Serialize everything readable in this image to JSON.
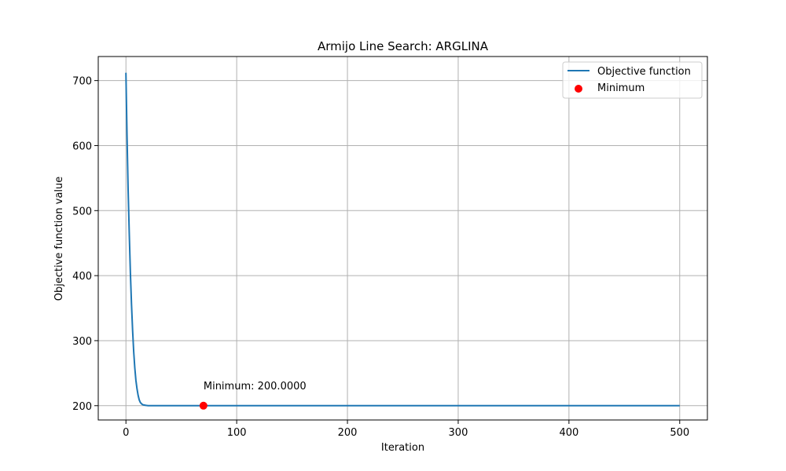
{
  "chart_data": {
    "type": "line",
    "title": "Armijo Line Search: ARGLINA",
    "xlabel": "Iteration",
    "ylabel": "Objective function value",
    "xlim": [
      -25,
      525
    ],
    "ylim": [
      178,
      737
    ],
    "xticks": [
      0,
      100,
      200,
      300,
      400,
      500
    ],
    "yticks": [
      200,
      300,
      400,
      500,
      600,
      700
    ],
    "grid": true,
    "legend_position": "top-right",
    "series": [
      {
        "name": "Objective function",
        "color": "#1f77b4",
        "x": [
          0,
          1,
          2,
          3,
          4,
          5,
          6,
          7,
          8,
          9,
          10,
          11,
          12,
          13,
          14,
          15,
          16,
          18,
          20,
          25,
          30,
          40,
          60,
          100,
          200,
          300,
          400,
          500
        ],
        "y": [
          712,
          615,
          532,
          463,
          404,
          356,
          316,
          283,
          258,
          239,
          226,
          216,
          209,
          205,
          203,
          201.7,
          201.0,
          200.4,
          200.15,
          200.02,
          200.0,
          200.0,
          200.0,
          200.0,
          200.0,
          200.0,
          200.0,
          200.0
        ]
      }
    ],
    "markers": [
      {
        "name": "Minimum",
        "x": 70,
        "y": 200.0,
        "color": "#ff0000"
      }
    ],
    "annotation": {
      "text": "Minimum: 200.0000",
      "x": 70,
      "y": 200.0
    }
  }
}
